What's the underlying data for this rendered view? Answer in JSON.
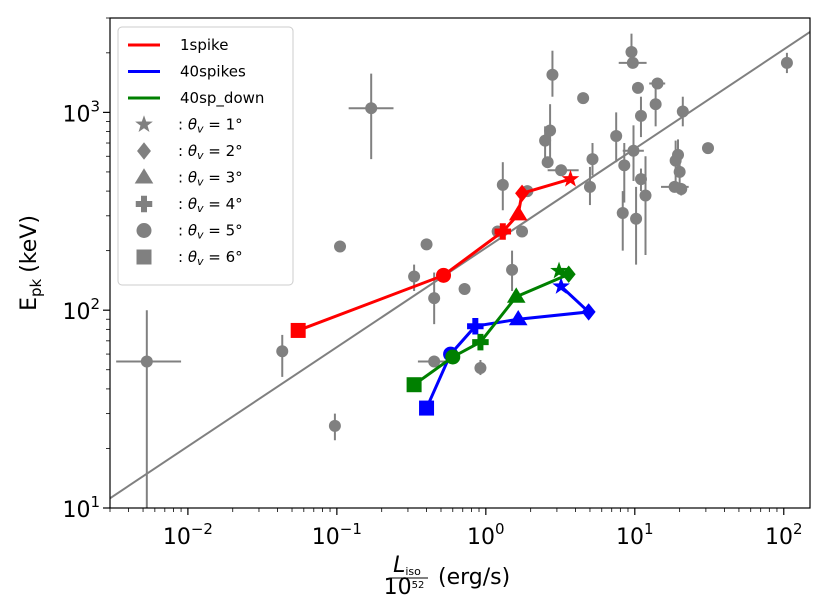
{
  "chart_data": {
    "type": "scatter",
    "title": "",
    "xlabel": "L_iso / 10^52 (erg/s)",
    "xlabel_parts": {
      "numerator": "L",
      "numerator_sub": "iso",
      "denominator": "10",
      "denominator_sup": "52",
      "unit": "(erg/s)"
    },
    "ylabel": "E_pk (keV)",
    "ylabel_parts": {
      "main": "E",
      "sub": "pk",
      "unit": "(keV)"
    },
    "xscale": "log",
    "yscale": "log",
    "xlim": [
      0.003,
      150
    ],
    "ylim": [
      10,
      3000
    ],
    "x_ticks": [
      {
        "base": "10",
        "exp": "−2",
        "value": 0.01
      },
      {
        "base": "10",
        "exp": "−1",
        "value": 0.1
      },
      {
        "base": "10",
        "exp": "0",
        "value": 1
      },
      {
        "base": "10",
        "exp": "1",
        "value": 10
      },
      {
        "base": "10",
        "exp": "2",
        "value": 100
      }
    ],
    "y_ticks": [
      {
        "base": "10",
        "exp": "1",
        "value": 10
      },
      {
        "base": "10",
        "exp": "2",
        "value": 100
      },
      {
        "base": "10",
        "exp": "3",
        "value": 1000
      }
    ],
    "fit_line": {
      "color": "#808080",
      "points": [
        [
          0.003,
          11.2
        ],
        [
          150,
          2550
        ]
      ]
    },
    "observed": {
      "color": "#808080",
      "points": [
        {
          "x": 0.0053,
          "y": 55,
          "ylo": 10,
          "yhi": 100,
          "xlo": 0.0033,
          "xhi": 0.009
        },
        {
          "x": 0.043,
          "y": 62,
          "ylo": 46,
          "yhi": 75
        },
        {
          "x": 0.097,
          "y": 26,
          "ylo": 22,
          "yhi": 30
        },
        {
          "x": 0.105,
          "y": 210
        },
        {
          "x": 0.17,
          "y": 1050,
          "ylo": 580,
          "yhi": 1570,
          "xlo": 0.12,
          "xhi": 0.24
        },
        {
          "x": 0.33,
          "y": 148,
          "ylo": 125,
          "yhi": 170
        },
        {
          "x": 0.4,
          "y": 215
        },
        {
          "x": 0.45,
          "y": 115,
          "ylo": 85,
          "yhi": 155
        },
        {
          "x": 0.45,
          "y": 55,
          "xlo": 0.35,
          "xhi": 0.58
        },
        {
          "x": 0.72,
          "y": 128
        },
        {
          "x": 0.92,
          "y": 51,
          "ylo": 47,
          "yhi": 56
        },
        {
          "x": 1.2,
          "y": 250
        },
        {
          "x": 1.3,
          "y": 430,
          "ylo": 320,
          "yhi": 560
        },
        {
          "x": 1.5,
          "y": 160,
          "ylo": 125,
          "yhi": 200
        },
        {
          "x": 1.75,
          "y": 250
        },
        {
          "x": 1.9,
          "y": 400
        },
        {
          "x": 2.5,
          "y": 720,
          "ylo": 590,
          "yhi": 850
        },
        {
          "x": 2.6,
          "y": 560
        },
        {
          "x": 2.7,
          "y": 810,
          "ylo": 580,
          "yhi": 1100
        },
        {
          "x": 2.8,
          "y": 1550,
          "ylo": 1200,
          "yhi": 2050
        },
        {
          "x": 3.2,
          "y": 510,
          "xlo": 2.6,
          "xhi": 4.2
        },
        {
          "x": 4.5,
          "y": 1180
        },
        {
          "x": 5.0,
          "y": 420,
          "ylo": 340,
          "yhi": 530
        },
        {
          "x": 5.2,
          "y": 580,
          "ylo": 480,
          "yhi": 700
        },
        {
          "x": 7.5,
          "y": 760,
          "ylo": 560,
          "yhi": 1000
        },
        {
          "x": 8.3,
          "y": 310,
          "ylo": 200,
          "yhi": 400
        },
        {
          "x": 8.5,
          "y": 540,
          "ylo": 350,
          "yhi": 700
        },
        {
          "x": 9.5,
          "y": 2020,
          "ylo": 1700,
          "yhi": 2500
        },
        {
          "x": 9.7,
          "y": 1780,
          "xlo": 7.8,
          "xhi": 12
        },
        {
          "x": 9.8,
          "y": 640,
          "ylo": 450,
          "yhi": 860,
          "xlo": 8.3,
          "xhi": 11.5
        },
        {
          "x": 10.2,
          "y": 290,
          "ylo": 170,
          "yhi": 420
        },
        {
          "x": 10.5,
          "y": 1330
        },
        {
          "x": 11.0,
          "y": 960,
          "ylo": 750,
          "yhi": 1200
        },
        {
          "x": 11.0,
          "y": 460,
          "ylo": 400,
          "yhi": 520
        },
        {
          "x": 11.8,
          "y": 380,
          "ylo": 190,
          "yhi": 600
        },
        {
          "x": 13.8,
          "y": 1100,
          "ylo": 850,
          "yhi": 1350
        },
        {
          "x": 14.2,
          "y": 1400,
          "xlo": 12.5,
          "xhi": 16
        },
        {
          "x": 18.5,
          "y": 420,
          "xlo": 15,
          "xhi": 23
        },
        {
          "x": 18.8,
          "y": 570,
          "ylo": 420,
          "yhi": 720
        },
        {
          "x": 19.5,
          "y": 610,
          "ylo": 500,
          "yhi": 730
        },
        {
          "x": 20.0,
          "y": 500,
          "ylo": 400,
          "yhi": 600
        },
        {
          "x": 20.5,
          "y": 410,
          "ylo": 380,
          "yhi": 440
        },
        {
          "x": 21.0,
          "y": 1010,
          "ylo": 850,
          "yhi": 1200
        },
        {
          "x": 31.0,
          "y": 660
        },
        {
          "x": 105.0,
          "y": 1780,
          "ylo": 1580,
          "yhi": 2000
        }
      ]
    },
    "series": [
      {
        "name": "1spike",
        "color": "#ff0000",
        "x": [
          3.7,
          1.75,
          1.65,
          1.3,
          0.52,
          0.055
        ],
        "y": [
          460,
          390,
          305,
          250,
          150,
          79
        ]
      },
      {
        "name": "40spikes",
        "color": "#0000ff",
        "x": [
          3.2,
          4.9,
          1.65,
          0.85,
          0.58,
          0.4
        ],
        "y": [
          132,
          98,
          90,
          83,
          60,
          32
        ]
      },
      {
        "name": "40sp_down",
        "color": "#008000",
        "x": [
          3.1,
          3.6,
          1.6,
          0.92,
          0.6,
          0.33
        ],
        "y": [
          158,
          152,
          117,
          69,
          58,
          42
        ]
      }
    ],
    "marker_order": [
      "star",
      "diamond",
      "triangle",
      "plus",
      "circle",
      "square"
    ],
    "legend": {
      "location": "upper-left",
      "lines": [
        {
          "label": "1spike",
          "color": "#ff0000"
        },
        {
          "label": "40spikes",
          "color": "#0000ff"
        },
        {
          "label": "40sp_down",
          "color": "#008000"
        }
      ],
      "markers": [
        {
          "marker": "star",
          "prefix": ": ",
          "theta": "θ",
          "sub": "v",
          "rest": " = 1°"
        },
        {
          "marker": "diamond",
          "prefix": ": ",
          "theta": "θ",
          "sub": "v",
          "rest": " = 2°"
        },
        {
          "marker": "triangle",
          "prefix": ": ",
          "theta": "θ",
          "sub": "v",
          "rest": " = 3°"
        },
        {
          "marker": "plus",
          "prefix": ": ",
          "theta": "θ",
          "sub": "v",
          "rest": " = 4°"
        },
        {
          "marker": "circle",
          "prefix": ": ",
          "theta": "θ",
          "sub": "v",
          "rest": " = 5°"
        },
        {
          "marker": "square",
          "prefix": ": ",
          "theta": "θ",
          "sub": "v",
          "rest": " = 6°"
        }
      ],
      "marker_color": "#808080"
    }
  }
}
